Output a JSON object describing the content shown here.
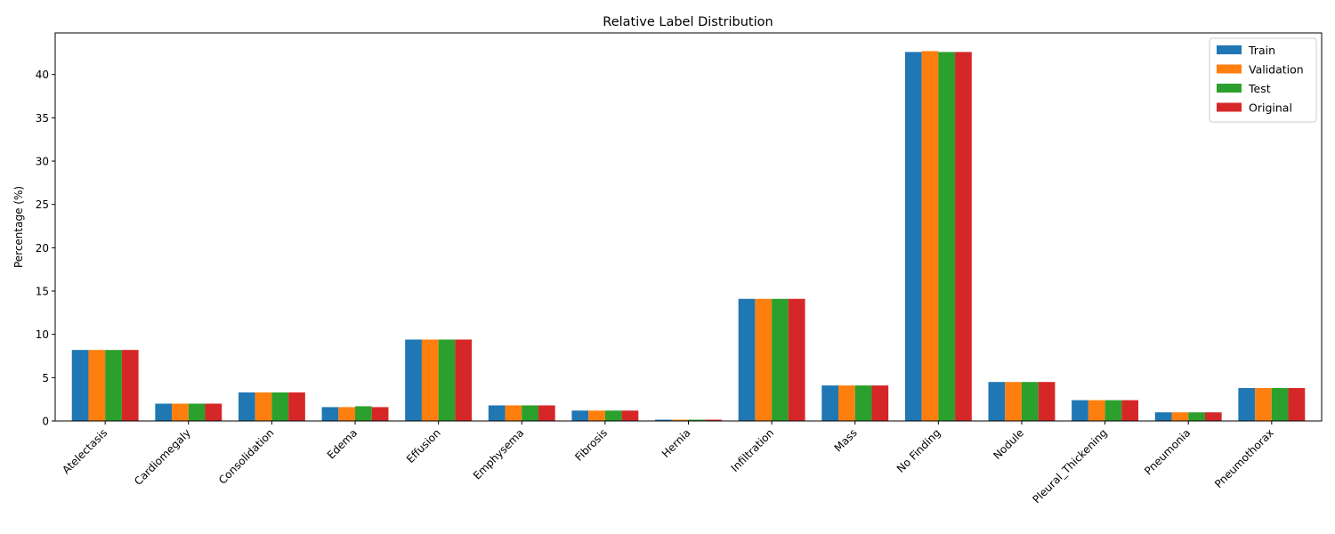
{
  "chart_data": {
    "type": "bar",
    "title": "Relative Label Distribution",
    "xlabel": "",
    "ylabel": "Percentage (%)",
    "ylim": [
      0,
      44.8
    ],
    "yticks": [
      0,
      5,
      10,
      15,
      20,
      25,
      30,
      35,
      40
    ],
    "legend_position": "top-right",
    "grid": false,
    "categories": [
      "Atelectasis",
      "Cardiomegaly",
      "Consolidation",
      "Edema",
      "Effusion",
      "Emphysema",
      "Fibrosis",
      "Hernia",
      "Infiltration",
      "Mass",
      "No Finding",
      "Nodule",
      "Pleural_Thickening",
      "Pneumonia",
      "Pneumothorax"
    ],
    "series": [
      {
        "name": "Train",
        "color": "#1f77b4",
        "values": [
          8.2,
          2.0,
          3.3,
          1.6,
          9.4,
          1.8,
          1.2,
          0.15,
          14.1,
          4.1,
          42.6,
          4.5,
          2.4,
          1.0,
          3.8
        ]
      },
      {
        "name": "Validation",
        "color": "#ff7f0e",
        "values": [
          8.2,
          2.0,
          3.3,
          1.6,
          9.4,
          1.8,
          1.2,
          0.15,
          14.1,
          4.1,
          42.7,
          4.5,
          2.4,
          1.0,
          3.8
        ]
      },
      {
        "name": "Test",
        "color": "#2ca02c",
        "values": [
          8.2,
          2.0,
          3.3,
          1.7,
          9.4,
          1.8,
          1.2,
          0.15,
          14.1,
          4.1,
          42.6,
          4.5,
          2.4,
          1.0,
          3.8
        ]
      },
      {
        "name": "Original",
        "color": "#d62728",
        "values": [
          8.2,
          2.0,
          3.3,
          1.6,
          9.4,
          1.8,
          1.2,
          0.15,
          14.1,
          4.1,
          42.6,
          4.5,
          2.4,
          1.0,
          3.8
        ]
      }
    ]
  }
}
